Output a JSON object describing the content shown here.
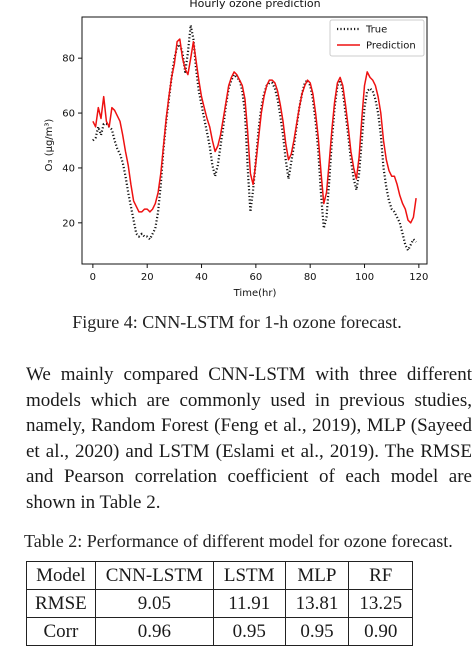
{
  "chart_data": {
    "type": "line",
    "title": "Hourly ozone prediction",
    "xlabel": "Time(hr)",
    "ylabel": "O₃ (μg/m³)",
    "xlim": [
      -4,
      123
    ],
    "ylim": [
      5,
      95
    ],
    "xticks": [
      0,
      20,
      40,
      60,
      80,
      100,
      120
    ],
    "yticks": [
      20,
      40,
      60,
      80
    ],
    "grid": false,
    "legend_position": "top-right",
    "series": [
      {
        "name": "True",
        "style": "dotted",
        "color": "#111111",
        "points": [
          [
            0,
            50
          ],
          [
            1,
            51
          ],
          [
            2,
            55
          ],
          [
            3,
            52
          ],
          [
            4,
            56
          ],
          [
            5,
            56
          ],
          [
            6,
            55
          ],
          [
            7,
            54
          ],
          [
            8,
            50
          ],
          [
            9,
            47
          ],
          [
            10,
            45
          ],
          [
            11,
            42
          ],
          [
            12,
            37
          ],
          [
            13,
            31
          ],
          [
            14,
            26
          ],
          [
            15,
            21
          ],
          [
            16,
            16
          ],
          [
            17,
            15
          ],
          [
            18,
            16
          ],
          [
            19,
            15
          ],
          [
            20,
            15
          ],
          [
            21,
            14
          ],
          [
            22,
            16
          ],
          [
            23,
            18
          ],
          [
            24,
            24
          ],
          [
            25,
            34
          ],
          [
            26,
            47
          ],
          [
            27,
            57
          ],
          [
            28,
            65
          ],
          [
            29,
            73
          ],
          [
            30,
            80
          ],
          [
            31,
            84
          ],
          [
            32,
            85
          ],
          [
            33,
            82
          ],
          [
            34,
            75
          ],
          [
            35,
            82
          ],
          [
            36,
            92
          ],
          [
            37,
            87
          ],
          [
            38,
            76
          ],
          [
            39,
            68
          ],
          [
            40,
            63
          ],
          [
            41,
            58
          ],
          [
            42,
            53
          ],
          [
            43,
            48
          ],
          [
            44,
            41
          ],
          [
            45,
            37
          ],
          [
            46,
            41
          ],
          [
            47,
            48
          ],
          [
            48,
            55
          ],
          [
            49,
            63
          ],
          [
            50,
            69
          ],
          [
            51,
            72
          ],
          [
            52,
            74
          ],
          [
            53,
            73
          ],
          [
            54,
            72
          ],
          [
            55,
            68
          ],
          [
            56,
            60
          ],
          [
            57,
            40
          ],
          [
            58,
            24
          ],
          [
            59,
            32
          ],
          [
            60,
            43
          ],
          [
            61,
            54
          ],
          [
            62,
            62
          ],
          [
            63,
            67
          ],
          [
            64,
            70
          ],
          [
            65,
            71
          ],
          [
            66,
            71
          ],
          [
            67,
            69
          ],
          [
            68,
            65
          ],
          [
            69,
            59
          ],
          [
            70,
            52
          ],
          [
            71,
            43
          ],
          [
            72,
            36
          ],
          [
            73,
            42
          ],
          [
            74,
            48
          ],
          [
            75,
            55
          ],
          [
            76,
            62
          ],
          [
            77,
            67
          ],
          [
            78,
            71
          ],
          [
            79,
            72
          ],
          [
            80,
            70
          ],
          [
            81,
            65
          ],
          [
            82,
            57
          ],
          [
            83,
            46
          ],
          [
            84,
            30
          ],
          [
            85,
            18
          ],
          [
            86,
            22
          ],
          [
            87,
            35
          ],
          [
            88,
            50
          ],
          [
            89,
            62
          ],
          [
            90,
            70
          ],
          [
            91,
            72
          ],
          [
            92,
            68
          ],
          [
            93,
            60
          ],
          [
            94,
            52
          ],
          [
            95,
            43
          ],
          [
            96,
            36
          ],
          [
            97,
            32
          ],
          [
            98,
            38
          ],
          [
            99,
            50
          ],
          [
            100,
            62
          ],
          [
            101,
            68
          ],
          [
            102,
            69
          ],
          [
            103,
            68
          ],
          [
            104,
            65
          ],
          [
            105,
            60
          ],
          [
            106,
            52
          ],
          [
            107,
            40
          ],
          [
            108,
            33
          ],
          [
            109,
            28
          ],
          [
            110,
            25
          ],
          [
            111,
            24
          ],
          [
            112,
            22
          ],
          [
            113,
            20
          ],
          [
            114,
            16
          ],
          [
            115,
            12
          ],
          [
            116,
            10
          ],
          [
            117,
            12
          ],
          [
            118,
            14
          ],
          [
            119,
            13
          ]
        ]
      },
      {
        "name": "Prediction",
        "style": "solid",
        "color": "#ee1111",
        "points": [
          [
            0,
            57
          ],
          [
            1,
            55
          ],
          [
            2,
            62
          ],
          [
            3,
            58
          ],
          [
            4,
            66
          ],
          [
            5,
            57
          ],
          [
            6,
            55
          ],
          [
            7,
            62
          ],
          [
            8,
            61
          ],
          [
            9,
            59
          ],
          [
            10,
            57
          ],
          [
            11,
            52
          ],
          [
            12,
            46
          ],
          [
            13,
            41
          ],
          [
            14,
            34
          ],
          [
            15,
            28
          ],
          [
            16,
            26
          ],
          [
            17,
            24
          ],
          [
            18,
            24
          ],
          [
            19,
            25
          ],
          [
            20,
            25
          ],
          [
            21,
            24
          ],
          [
            22,
            25
          ],
          [
            23,
            27
          ],
          [
            24,
            31
          ],
          [
            25,
            38
          ],
          [
            26,
            48
          ],
          [
            27,
            58
          ],
          [
            28,
            66
          ],
          [
            29,
            73
          ],
          [
            30,
            78
          ],
          [
            31,
            86
          ],
          [
            32,
            87
          ],
          [
            33,
            80
          ],
          [
            34,
            76
          ],
          [
            35,
            74
          ],
          [
            36,
            80
          ],
          [
            37,
            86
          ],
          [
            38,
            79
          ],
          [
            39,
            72
          ],
          [
            40,
            66
          ],
          [
            41,
            62
          ],
          [
            42,
            58
          ],
          [
            43,
            55
          ],
          [
            44,
            50
          ],
          [
            45,
            46
          ],
          [
            46,
            48
          ],
          [
            47,
            52
          ],
          [
            48,
            58
          ],
          [
            49,
            64
          ],
          [
            50,
            70
          ],
          [
            51,
            73
          ],
          [
            52,
            75
          ],
          [
            53,
            74
          ],
          [
            54,
            72
          ],
          [
            55,
            70
          ],
          [
            56,
            65
          ],
          [
            57,
            53
          ],
          [
            58,
            38
          ],
          [
            59,
            34
          ],
          [
            60,
            42
          ],
          [
            61,
            51
          ],
          [
            62,
            60
          ],
          [
            63,
            66
          ],
          [
            64,
            70
          ],
          [
            65,
            72
          ],
          [
            66,
            72
          ],
          [
            67,
            71
          ],
          [
            68,
            68
          ],
          [
            69,
            63
          ],
          [
            70,
            57
          ],
          [
            71,
            49
          ],
          [
            72,
            43
          ],
          [
            73,
            45
          ],
          [
            74,
            50
          ],
          [
            75,
            56
          ],
          [
            76,
            62
          ],
          [
            77,
            67
          ],
          [
            78,
            70
          ],
          [
            79,
            72
          ],
          [
            80,
            71
          ],
          [
            81,
            67
          ],
          [
            82,
            60
          ],
          [
            83,
            51
          ],
          [
            84,
            38
          ],
          [
            85,
            27
          ],
          [
            86,
            31
          ],
          [
            87,
            42
          ],
          [
            88,
            54
          ],
          [
            89,
            64
          ],
          [
            90,
            71
          ],
          [
            91,
            73
          ],
          [
            92,
            70
          ],
          [
            93,
            63
          ],
          [
            94,
            55
          ],
          [
            95,
            46
          ],
          [
            96,
            40
          ],
          [
            97,
            36
          ],
          [
            98,
            44
          ],
          [
            99,
            58
          ],
          [
            100,
            70
          ],
          [
            101,
            75
          ],
          [
            102,
            73
          ],
          [
            103,
            72
          ],
          [
            104,
            70
          ],
          [
            105,
            66
          ],
          [
            106,
            60
          ],
          [
            107,
            50
          ],
          [
            108,
            43
          ],
          [
            109,
            39
          ],
          [
            110,
            37
          ],
          [
            111,
            37
          ],
          [
            112,
            34
          ],
          [
            113,
            30
          ],
          [
            114,
            27
          ],
          [
            115,
            25
          ],
          [
            116,
            21
          ],
          [
            117,
            20
          ],
          [
            118,
            22
          ],
          [
            119,
            29
          ]
        ]
      }
    ]
  },
  "figure_caption": "Figure 4: CNN-LSTM for 1-h ozone forecast.",
  "body_text": "We mainly compared CNN-LSTM with three different models which are commonly used in previous studies, namely, Random Forest (Feng et al., 2019), MLP (Sayeed et al., 2020) and LSTM (Eslami et al., 2019). The RMSE and Pearson correlation coefficient of each model are shown in Table 2.",
  "table_caption": "Table 2: Performance of different model for ozone forecast.",
  "table": {
    "header": [
      "Model",
      "CNN-LSTM",
      "LSTM",
      "MLP",
      "RF"
    ],
    "rows": [
      [
        "RMSE",
        "9.05",
        "11.91",
        "13.81",
        "13.25"
      ],
      [
        "Corr",
        "0.96",
        "0.95",
        "0.95",
        "0.90"
      ]
    ]
  }
}
